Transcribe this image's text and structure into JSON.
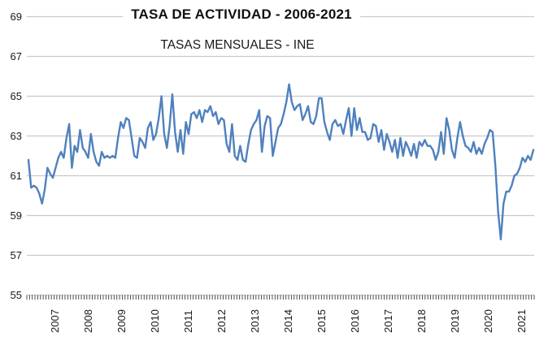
{
  "chart_data": {
    "type": "line",
    "title": "TASA DE ACTIVIDAD - 2006-2021",
    "subtitle": "TASAS MENSUALES - INE",
    "x_start": "2006-01",
    "frequency": "monthly",
    "x_year_labels": [
      "2007",
      "2008",
      "2009",
      "2010",
      "2011",
      "2012",
      "2013",
      "2014",
      "2015",
      "2016",
      "2017",
      "2018",
      "2019",
      "2020",
      "2021"
    ],
    "y_ticks": [
      55,
      57,
      59,
      61,
      63,
      65,
      67,
      69
    ],
    "ylim": [
      55,
      69
    ],
    "grid": "horizontal",
    "legend": "none",
    "colors": {
      "line": "#4f81bd",
      "gridline": "#c9c9c9",
      "tick": "#3a3a3a",
      "label": "#1a1a1a"
    },
    "series": [
      {
        "name": "Tasa de actividad (%)",
        "values": [
          61.8,
          60.4,
          60.5,
          60.4,
          60.1,
          59.6,
          60.3,
          61.4,
          61.1,
          60.9,
          61.4,
          61.9,
          62.2,
          61.9,
          62.9,
          63.6,
          61.4,
          62.5,
          62.2,
          63.3,
          62.4,
          62.2,
          61.9,
          63.1,
          62.2,
          61.7,
          61.5,
          62.2,
          61.9,
          62.0,
          61.9,
          62.0,
          61.9,
          62.9,
          63.7,
          63.4,
          63.9,
          63.8,
          62.9,
          62.0,
          61.9,
          62.9,
          62.7,
          62.4,
          63.4,
          63.7,
          62.8,
          63.1,
          63.9,
          65.0,
          63.1,
          62.4,
          63.5,
          65.1,
          63.2,
          62.2,
          63.3,
          62.1,
          63.7,
          63.1,
          64.1,
          64.2,
          63.9,
          64.3,
          63.7,
          64.3,
          64.2,
          64.5,
          64.0,
          64.2,
          63.6,
          63.9,
          63.8,
          62.6,
          62.2,
          63.6,
          62.0,
          61.8,
          62.5,
          61.8,
          61.7,
          62.6,
          63.3,
          63.6,
          63.8,
          64.3,
          62.2,
          63.5,
          64.0,
          63.9,
          62.0,
          62.7,
          63.4,
          63.6,
          64.1,
          64.7,
          65.6,
          64.7,
          64.3,
          64.5,
          64.6,
          63.8,
          64.1,
          64.5,
          63.7,
          63.6,
          64.0,
          64.9,
          64.9,
          63.7,
          63.2,
          62.8,
          63.6,
          63.8,
          63.5,
          63.6,
          63.1,
          63.8,
          64.4,
          63.0,
          64.4,
          63.3,
          63.9,
          63.2,
          63.2,
          62.8,
          62.9,
          63.6,
          63.5,
          62.7,
          63.3,
          62.3,
          63.1,
          62.7,
          62.2,
          62.8,
          61.9,
          62.9,
          62.0,
          62.7,
          62.4,
          62.0,
          62.6,
          61.9,
          62.7,
          62.5,
          62.8,
          62.5,
          62.5,
          62.3,
          61.8,
          62.2,
          63.2,
          62.1,
          63.9,
          63.3,
          62.3,
          61.9,
          62.9,
          63.7,
          63.0,
          62.5,
          62.4,
          62.2,
          62.7,
          62.1,
          62.4,
          62.1,
          62.6,
          62.9,
          63.3,
          63.2,
          61.5,
          59.2,
          57.8,
          59.6,
          60.2,
          60.2,
          60.5,
          61.0,
          61.1,
          61.4,
          61.9,
          61.7,
          62.0,
          61.8,
          62.3
        ]
      }
    ]
  }
}
